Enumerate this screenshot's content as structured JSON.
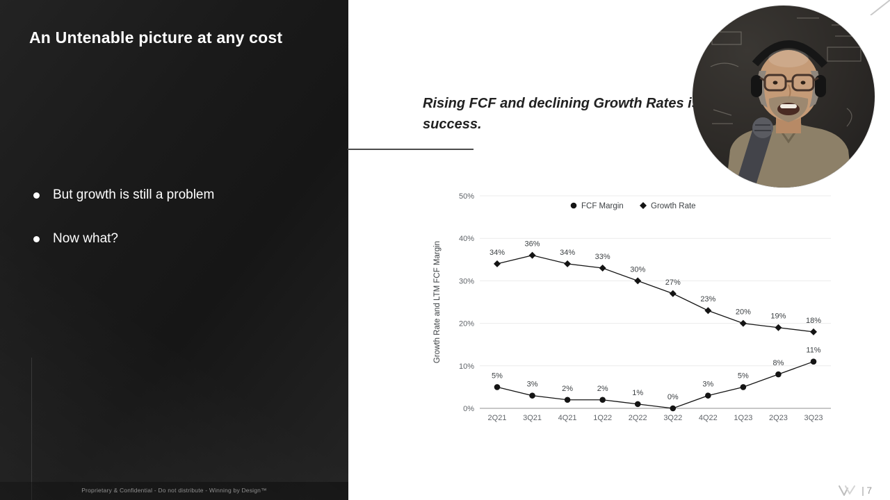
{
  "slide": {
    "title": "An Untenable picture at any cost",
    "bullets": [
      "But growth is still a problem",
      "Now what?"
    ],
    "quote_line1": "Rising FCF and declining Growth Rates is",
    "quote_line2": "success.",
    "footer": "Proprietary & Confidential - Do not distribute - Winning by Design™",
    "page_number": "| 7"
  },
  "chart_data": {
    "type": "line",
    "title": "",
    "categories": [
      "2Q21",
      "3Q21",
      "4Q21",
      "1Q22",
      "2Q22",
      "3Q22",
      "4Q22",
      "1Q23",
      "2Q23",
      "3Q23"
    ],
    "series": [
      {
        "name": "FCF Margin",
        "marker": "circle",
        "values": [
          5,
          3,
          2,
          2,
          1,
          0,
          3,
          5,
          8,
          11
        ]
      },
      {
        "name": "Growth Rate",
        "marker": "diamond",
        "values": [
          34,
          36,
          34,
          33,
          30,
          27,
          23,
          20,
          19,
          18
        ]
      }
    ],
    "xlabel": "",
    "ylabel": "Growth Rate and LTM FCF Margin",
    "ylim": [
      0,
      50
    ],
    "ytick_step": 10,
    "grid": true,
    "legend_position": "top",
    "line_color": "#141414",
    "label_suffix": "%"
  },
  "webcam": {
    "label": "presenter video"
  }
}
